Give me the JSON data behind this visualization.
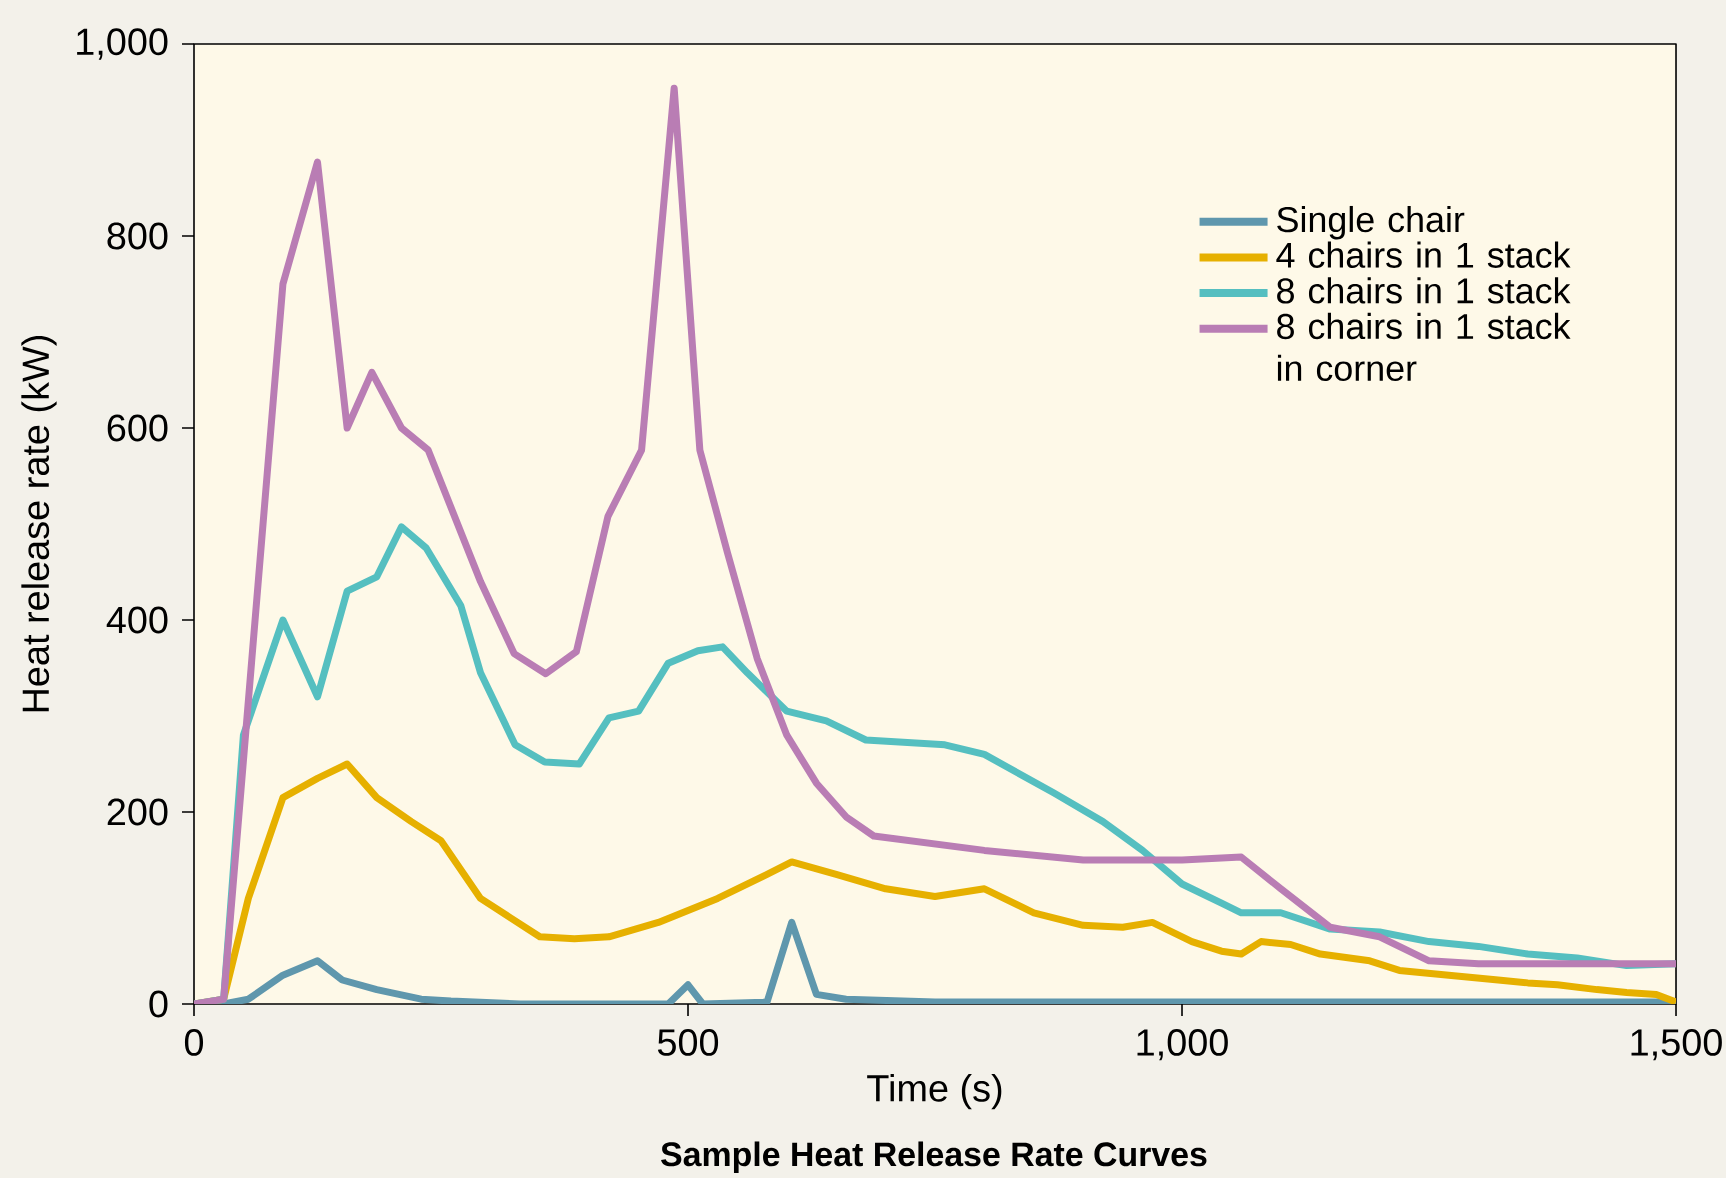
{
  "chart_data": {
    "type": "line",
    "title": "Sample Heat Release Rate Curves",
    "xlabel": "Time (s)",
    "ylabel": "Heat release rate (kW)",
    "xlim": [
      0,
      1500
    ],
    "ylim": [
      0,
      1000
    ],
    "xticks": [
      0,
      500,
      {
        "value": 1000,
        "label": "1,000"
      },
      {
        "value": 1500,
        "label": "1,500"
      }
    ],
    "yticks": [
      0,
      200,
      400,
      600,
      800,
      {
        "value": 1000,
        "label": "1,000"
      }
    ],
    "legend": "top right",
    "grid": false,
    "line_style": "solid",
    "series": [
      {
        "name": "Single chair",
        "color": "#5f97ad",
        "x": [
          0,
          30,
          55,
          90,
          125,
          150,
          185,
          230,
          260,
          330,
          480,
          500,
          515,
          580,
          605,
          630,
          660,
          750,
          1500
        ],
        "values": [
          0,
          0,
          5,
          30,
          45,
          25,
          15,
          5,
          3,
          0,
          0,
          20,
          0,
          2,
          85,
          10,
          5,
          2,
          2
        ]
      },
      {
        "name": "4 chairs in 1 stack",
        "color": "#e6b000",
        "x": [
          0,
          30,
          55,
          90,
          125,
          155,
          185,
          220,
          250,
          290,
          320,
          350,
          385,
          420,
          470,
          530,
          580,
          605,
          650,
          700,
          750,
          800,
          850,
          900,
          940,
          970,
          1010,
          1040,
          1060,
          1080,
          1110,
          1140,
          1190,
          1220,
          1270,
          1320,
          1350,
          1380,
          1420,
          1450,
          1480,
          1500
        ],
        "values": [
          0,
          5,
          110,
          215,
          235,
          250,
          215,
          190,
          170,
          110,
          90,
          70,
          68,
          70,
          85,
          110,
          135,
          148,
          135,
          120,
          112,
          120,
          95,
          82,
          80,
          85,
          65,
          55,
          52,
          65,
          62,
          52,
          45,
          35,
          30,
          25,
          22,
          20,
          15,
          12,
          10,
          2
        ]
      },
      {
        "name": "8 chairs in 1 stack",
        "color": "#55bfc0",
        "x": [
          0,
          30,
          50,
          90,
          125,
          155,
          185,
          210,
          235,
          270,
          290,
          325,
          355,
          390,
          420,
          450,
          480,
          510,
          535,
          560,
          600,
          640,
          680,
          760,
          800,
          870,
          920,
          960,
          1000,
          1040,
          1060,
          1100,
          1150,
          1200,
          1250,
          1300,
          1350,
          1400,
          1450,
          1500
        ],
        "values": [
          0,
          5,
          280,
          400,
          320,
          430,
          445,
          497,
          475,
          415,
          345,
          270,
          252,
          250,
          298,
          305,
          355,
          368,
          372,
          345,
          305,
          295,
          275,
          270,
          260,
          220,
          190,
          160,
          125,
          105,
          95,
          95,
          78,
          75,
          65,
          60,
          52,
          48,
          40,
          42
        ]
      },
      {
        "name": "8 chairs in 1 stack in corner",
        "color": "#b97db4",
        "x": [
          0,
          30,
          90,
          125,
          155,
          180,
          210,
          237,
          290,
          324,
          356,
          387,
          419,
          453,
          486,
          512,
          540,
          570,
          600,
          630,
          660,
          688,
          800,
          900,
          1000,
          1060,
          1100,
          1150,
          1200,
          1250,
          1300,
          1400,
          1500
        ],
        "values": [
          0,
          5,
          750,
          877,
          600,
          658,
          600,
          577,
          440,
          365,
          344,
          367,
          508,
          577,
          954,
          577,
          470,
          360,
          280,
          230,
          195,
          175,
          160,
          150,
          150,
          153,
          120,
          80,
          70,
          45,
          42,
          42,
          42
        ]
      }
    ]
  }
}
